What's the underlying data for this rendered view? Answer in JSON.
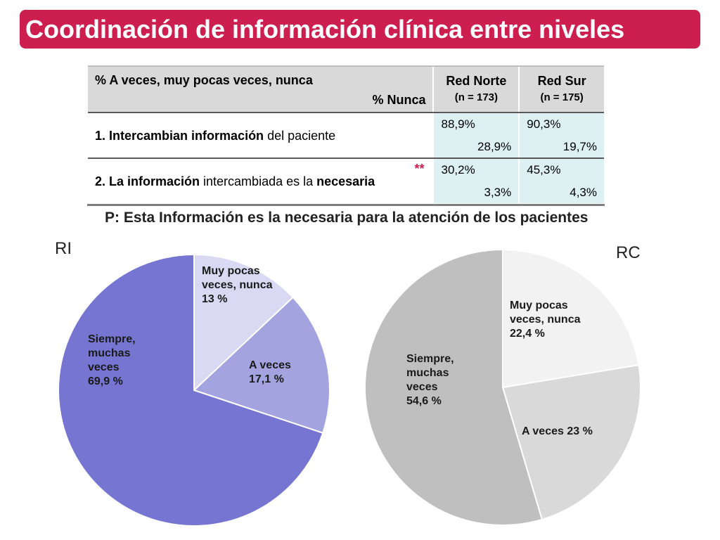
{
  "title": "Coordinación de información clínica entre niveles",
  "table": {
    "header_left_line1": "% A veces, muy pocas veces, nunca",
    "header_left_line2": "% Nunca",
    "networks": [
      {
        "name": "Red Norte",
        "n": "(n = 173)"
      },
      {
        "name": "Red Sur",
        "n": "(n = 175)"
      }
    ],
    "rows": [
      {
        "label_parts": [
          {
            "text": "1. Intercambian información",
            "bold": true
          },
          {
            "text": " del paciente",
            "bold": false
          }
        ],
        "marker": "",
        "values": [
          {
            "main": "88,9%",
            "never": "28,9%"
          },
          {
            "main": "90,3%",
            "never": "19,7%"
          }
        ]
      },
      {
        "label_parts": [
          {
            "text": "2. La información",
            "bold": true
          },
          {
            "text": " intercambiada es la ",
            "bold": false
          },
          {
            "text": "necesaria",
            "bold": true
          }
        ],
        "marker": "**",
        "values": [
          {
            "main": "30,2%",
            "never": "3,3%"
          },
          {
            "main": "45,3%",
            "never": "4,3%"
          }
        ]
      }
    ]
  },
  "question": "P: Esta Información es la necesaria para la atención de los pacientes",
  "colors": {
    "title_bg": "#cc1f4f",
    "table_value_bg": "#ddf0f2",
    "table_header_bg": "#d9d9d9"
  },
  "chart_data": [
    {
      "type": "pie",
      "title": "RI",
      "categories": [
        "Muy pocas veces, nunca",
        "A veces",
        "Siempre, muchas veces"
      ],
      "values": [
        13,
        17.1,
        69.9
      ],
      "colors": [
        "#d9d9f3",
        "#a3a3e0",
        "#7675d2"
      ],
      "labels": [
        [
          "Muy pocas",
          "veces, nunca",
          "13 %"
        ],
        [
          "A veces",
          "17,1 %"
        ],
        [
          "Siempre,",
          "muchas",
          "veces",
          "69,9 %"
        ]
      ]
    },
    {
      "type": "pie",
      "title": "RC",
      "categories": [
        "Muy pocas veces, nunca",
        "A veces",
        "Siempre, muchas veces"
      ],
      "values": [
        22.4,
        23,
        54.6
      ],
      "colors": [
        "#f2f2f2",
        "#d9d9d9",
        "#bfbfbf"
      ],
      "labels": [
        [
          "Muy pocas",
          "veces, nunca",
          "22,4 %"
        ],
        [
          "A veces 23 %"
        ],
        [
          "Siempre,",
          "muchas",
          "veces",
          "54,6 %"
        ]
      ]
    }
  ]
}
